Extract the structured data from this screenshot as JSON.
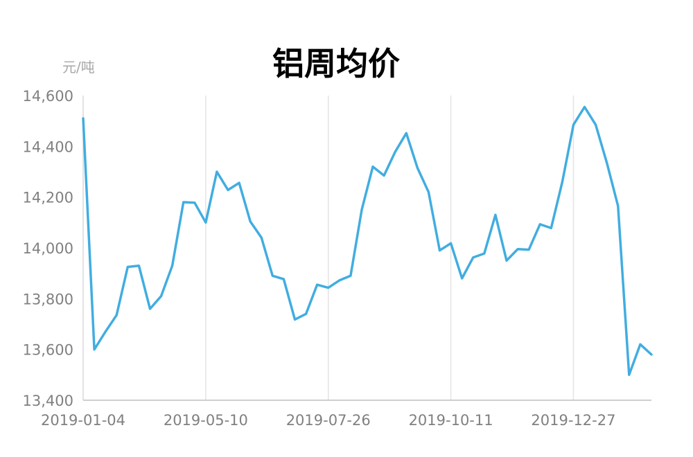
{
  "chart_data": {
    "type": "line",
    "title": "铝周均价",
    "ylabel": "元/吨",
    "xlabel": "",
    "ylim": [
      13400,
      14600
    ],
    "yticks": [
      "13,400",
      "13,600",
      "13,800",
      "14,000",
      "14,200",
      "14,400",
      "14,600"
    ],
    "ytick_values": [
      13400,
      13600,
      13800,
      14000,
      14200,
      14400,
      14600
    ],
    "xtick_labels": [
      "2019-01-04",
      "2019-05-10",
      "2019-07-26",
      "2019-10-11",
      "2019-12-27"
    ],
    "xtick_index": [
      0,
      11,
      22,
      33,
      44
    ],
    "grid": "vertical",
    "legend": "none",
    "color": "#41ade0",
    "series": [
      {
        "values": [
          14510,
          13600,
          13670,
          13735,
          13925,
          13930,
          13760,
          13810,
          13930,
          14180,
          14178,
          14100,
          14300,
          14228,
          14256,
          14104,
          14040,
          13890,
          13877,
          13718,
          13740,
          13855,
          13843,
          13872,
          13890,
          14150,
          14320,
          14285,
          14378,
          14452,
          14315,
          14220,
          13990,
          14018,
          13880,
          13962,
          13978,
          14130,
          13950,
          13995,
          13993,
          14093,
          14078,
          14260,
          14485,
          14555,
          14485,
          14335,
          14165,
          13500,
          13620,
          13580
        ]
      }
    ]
  }
}
